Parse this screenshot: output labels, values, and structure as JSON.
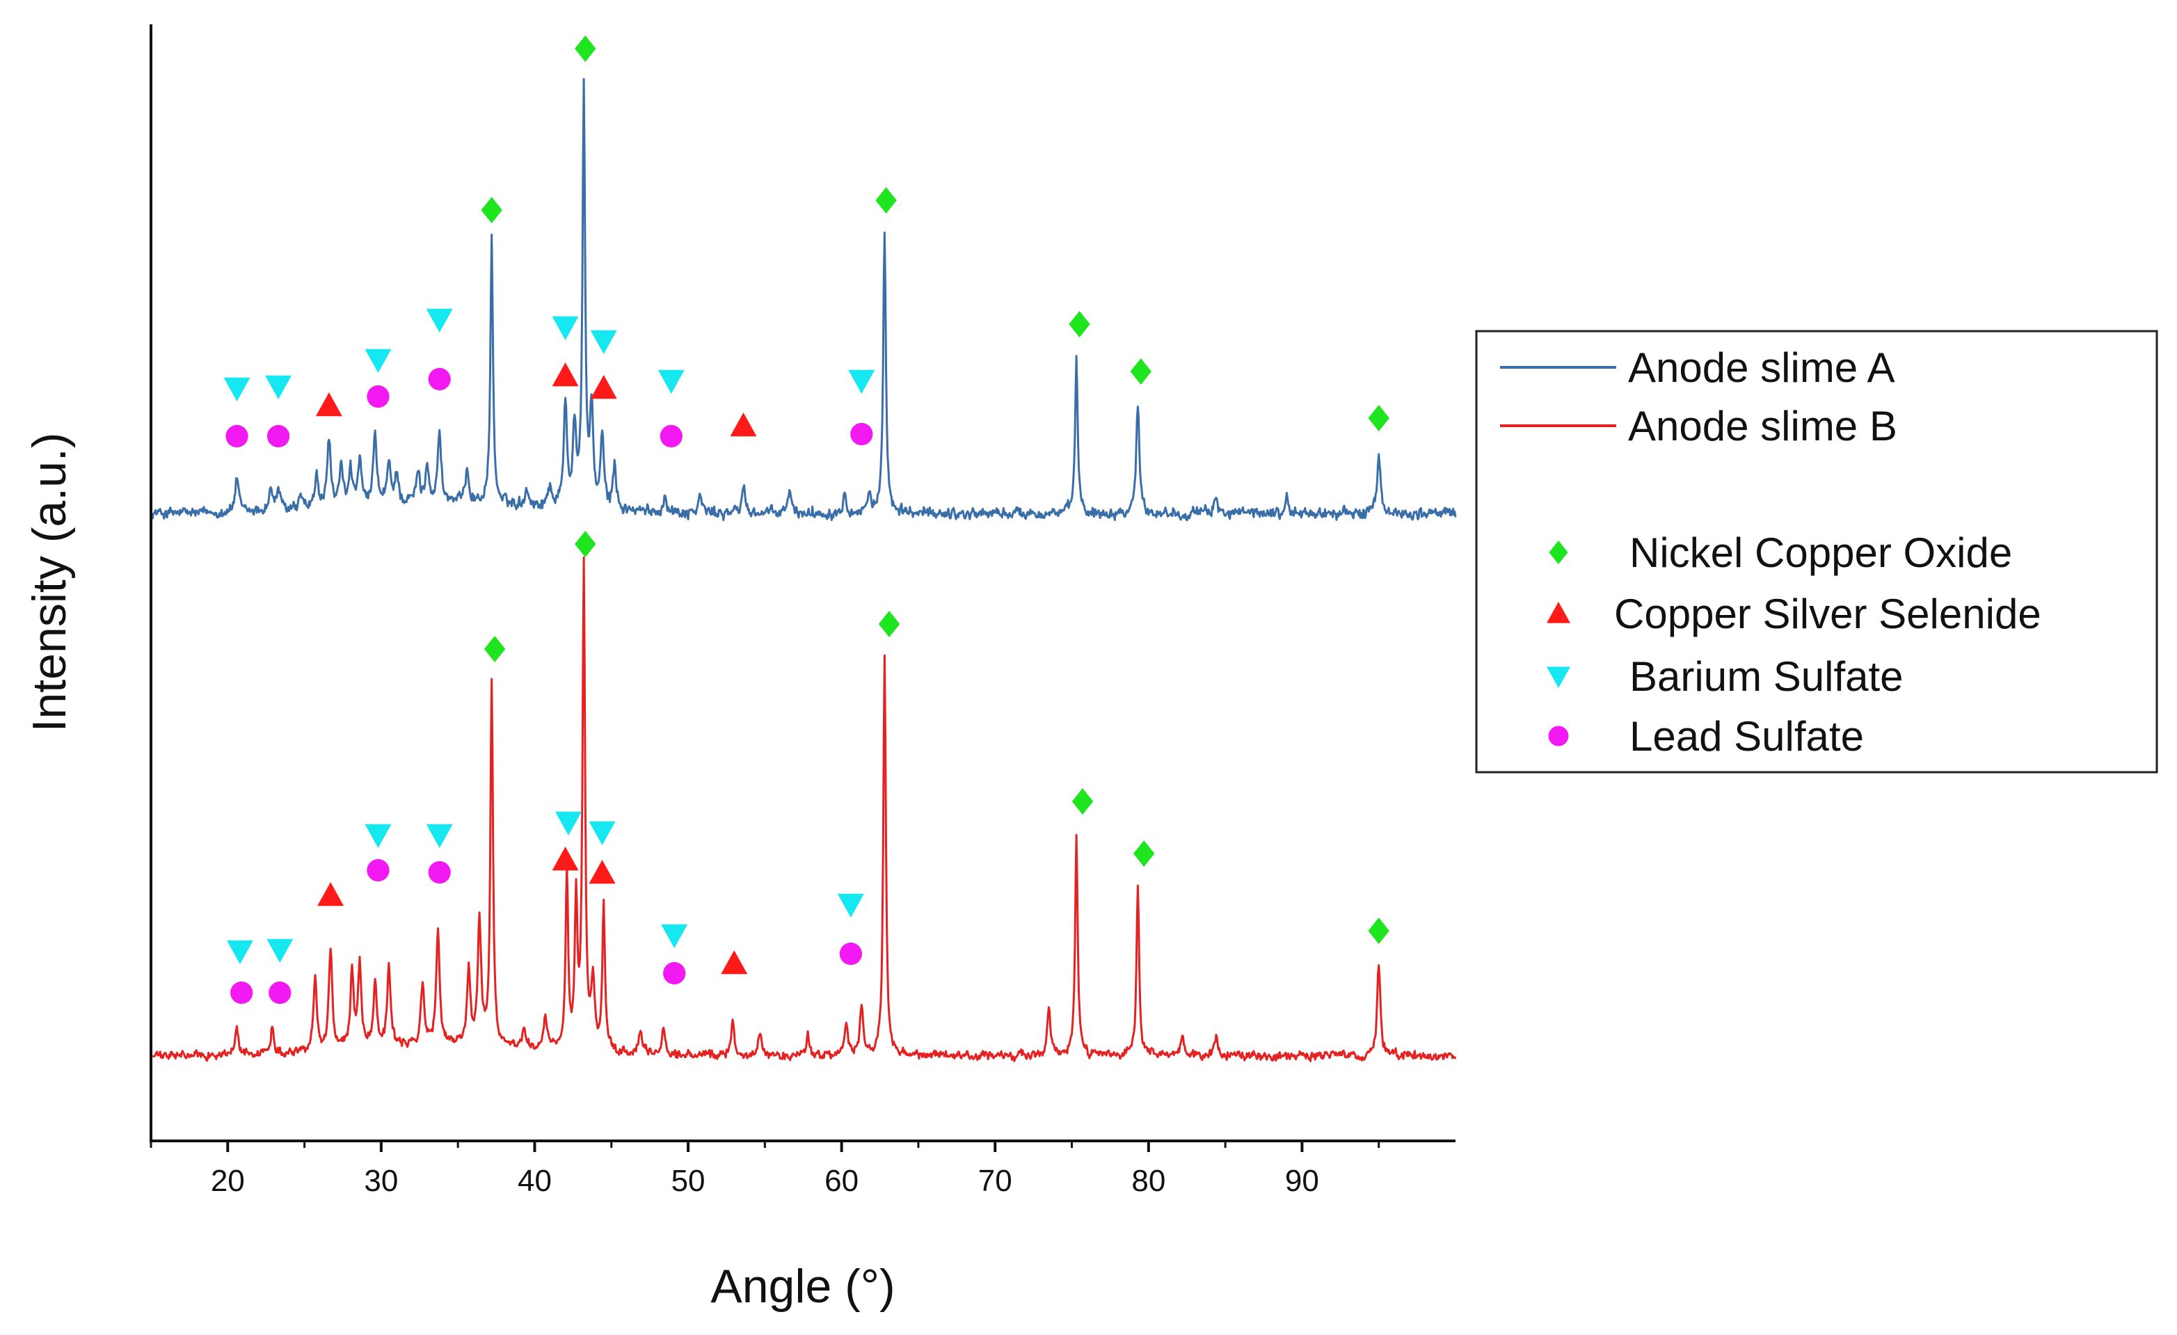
{
  "chart_data": {
    "type": "line",
    "title": "",
    "xlabel": "Angle (°)",
    "ylabel": "Intensity (a.u.)",
    "xlim": [
      15,
      100
    ],
    "xticks": [
      "20",
      "30",
      "40",
      "50",
      "60",
      "70",
      "80",
      "90"
    ],
    "yticks": [],
    "grid": false,
    "legend_position": "right",
    "series": [
      {
        "name": "Anode slime A",
        "color": "#3a6ea8",
        "baseline": 0,
        "noise": 0.016,
        "peaks": [
          [
            20.6,
            0.08
          ],
          [
            22.8,
            0.05
          ],
          [
            23.3,
            0.05
          ],
          [
            24.8,
            0.03
          ],
          [
            25.8,
            0.07
          ],
          [
            26.6,
            0.16
          ],
          [
            27.4,
            0.09
          ],
          [
            28.0,
            0.09
          ],
          [
            28.6,
            0.1
          ],
          [
            29.6,
            0.16
          ],
          [
            30.5,
            0.09
          ],
          [
            31.0,
            0.07
          ],
          [
            32.4,
            0.07
          ],
          [
            33.0,
            0.09
          ],
          [
            33.8,
            0.16
          ],
          [
            35.6,
            0.08
          ],
          [
            37.2,
            0.6
          ],
          [
            39.5,
            0.04
          ],
          [
            41.0,
            0.05
          ],
          [
            42.0,
            0.24
          ],
          [
            42.6,
            0.18
          ],
          [
            43.2,
            0.95
          ],
          [
            43.7,
            0.22
          ],
          [
            44.4,
            0.16
          ],
          [
            45.2,
            0.1
          ],
          [
            48.5,
            0.04
          ],
          [
            50.8,
            0.04
          ],
          [
            53.6,
            0.06
          ],
          [
            56.6,
            0.05
          ],
          [
            60.2,
            0.05
          ],
          [
            61.8,
            0.05
          ],
          [
            62.8,
            0.64
          ],
          [
            75.3,
            0.35
          ],
          [
            79.3,
            0.24
          ],
          [
            84.4,
            0.04
          ],
          [
            89.0,
            0.03
          ],
          [
            95.0,
            0.13
          ]
        ]
      },
      {
        "name": "Anode slime B",
        "color": "#e52222",
        "baseline": 0,
        "noise": 0.012,
        "peaks": [
          [
            20.6,
            0.06
          ],
          [
            22.9,
            0.06
          ],
          [
            25.7,
            0.17
          ],
          [
            26.7,
            0.23
          ],
          [
            28.1,
            0.17
          ],
          [
            28.6,
            0.19
          ],
          [
            29.6,
            0.15
          ],
          [
            30.5,
            0.18
          ],
          [
            32.7,
            0.14
          ],
          [
            33.7,
            0.26
          ],
          [
            35.7,
            0.17
          ],
          [
            36.4,
            0.28
          ],
          [
            37.2,
            0.83
          ],
          [
            39.3,
            0.04
          ],
          [
            40.7,
            0.07
          ],
          [
            42.1,
            0.4
          ],
          [
            42.7,
            0.34
          ],
          [
            43.2,
            1.1
          ],
          [
            43.8,
            0.15
          ],
          [
            44.5,
            0.33
          ],
          [
            46.9,
            0.05
          ],
          [
            48.4,
            0.06
          ],
          [
            52.9,
            0.08
          ],
          [
            54.7,
            0.05
          ],
          [
            57.8,
            0.05
          ],
          [
            60.3,
            0.07
          ],
          [
            61.3,
            0.11
          ],
          [
            62.8,
            0.91
          ],
          [
            73.5,
            0.11
          ],
          [
            75.3,
            0.5
          ],
          [
            79.3,
            0.39
          ],
          [
            82.2,
            0.05
          ],
          [
            84.4,
            0.04
          ],
          [
            95.0,
            0.21
          ]
        ]
      }
    ],
    "phases": [
      {
        "name": "Nickel Copper Oxide",
        "marker": "diamond",
        "color": "#1ee51e"
      },
      {
        "name": "Copper Silver Selenide",
        "marker": "triangle-up",
        "color": "#ff1a1a"
      },
      {
        "name": "Barium Sulfate",
        "marker": "triangle-down",
        "color": "#16e8f2"
      },
      {
        "name": "Lead Sulfate",
        "marker": "circle",
        "color": "#f219f2"
      }
    ],
    "annotations": [
      {
        "series": "Anode slime A",
        "phase": "Nickel Copper Oxide",
        "angles": [
          37.2,
          43.3,
          62.9,
          75.5,
          79.5,
          95.0
        ]
      },
      {
        "series": "Anode slime A",
        "phase": "Copper Silver Selenide",
        "angles": [
          26.6,
          42.0,
          44.5,
          53.6
        ]
      },
      {
        "series": "Anode slime A",
        "phase": "Barium Sulfate",
        "angles": [
          20.6,
          23.3,
          29.8,
          33.8,
          42.0,
          44.5,
          48.9,
          61.3
        ]
      },
      {
        "series": "Anode slime A",
        "phase": "Lead Sulfate",
        "angles": [
          20.6,
          23.3,
          29.8,
          33.8,
          48.9,
          61.3
        ]
      },
      {
        "series": "Anode slime B",
        "phase": "Nickel Copper Oxide",
        "angles": [
          37.4,
          43.3,
          63.1,
          75.7,
          79.7,
          95.0
        ]
      },
      {
        "series": "Anode slime B",
        "phase": "Copper Silver Selenide",
        "angles": [
          26.7,
          42.0,
          44.4,
          53.0
        ]
      },
      {
        "series": "Anode slime B",
        "phase": "Barium Sulfate",
        "angles": [
          20.8,
          23.4,
          29.8,
          33.8,
          42.2,
          44.4,
          49.1,
          60.6
        ]
      },
      {
        "series": "Anode slime B",
        "phase": "Lead Sulfate",
        "angles": [
          20.9,
          23.4,
          29.8,
          33.8,
          49.1,
          60.6
        ]
      }
    ]
  }
}
